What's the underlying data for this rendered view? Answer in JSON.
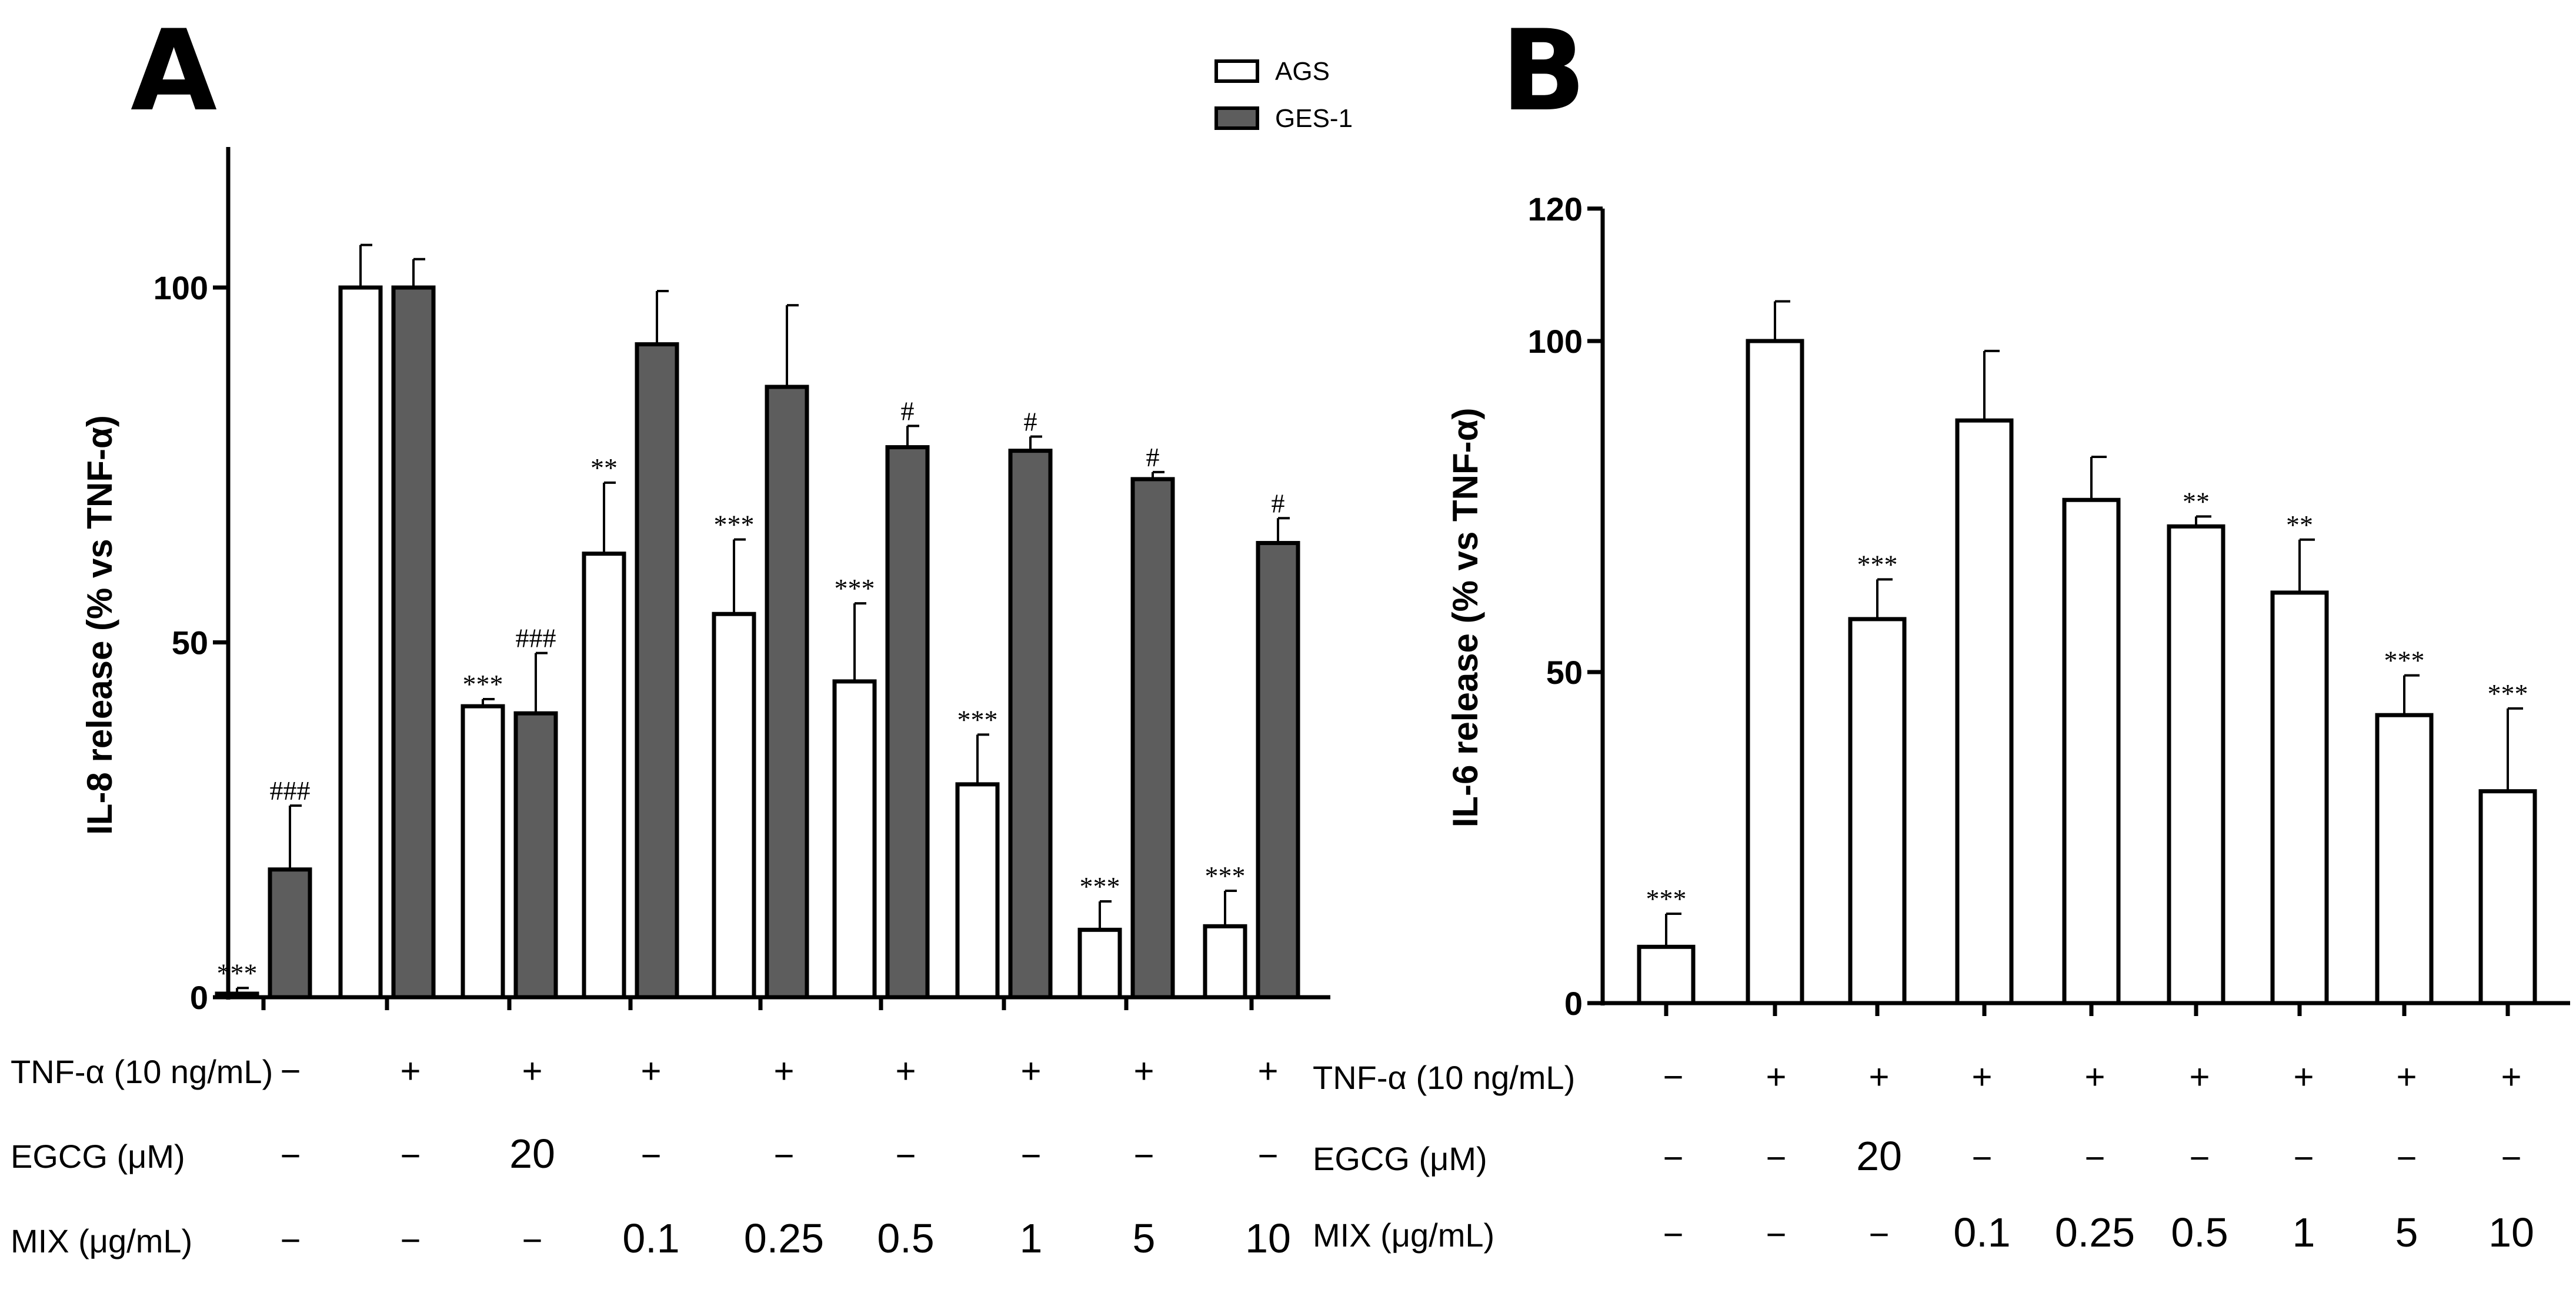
{
  "chart_data": [
    {
      "panel": "A",
      "type": "bar",
      "ylabel": "IL-8 release (% vs TNF-α)",
      "yticks": [
        0,
        50,
        100
      ],
      "ylim": [
        0,
        120
      ],
      "legend": {
        "position": "top-right",
        "entries": [
          "AGS",
          "GES-1"
        ]
      },
      "series": [
        {
          "name": "AGS",
          "color": "#ffffff",
          "values": [
            0.5,
            100,
            41,
            62.5,
            54,
            44.5,
            30,
            9.5,
            10
          ],
          "errors": [
            0.8,
            6,
            1,
            10,
            10.5,
            11,
            7,
            4,
            5
          ],
          "sig": [
            "***",
            "",
            "***",
            "**",
            "***",
            "***",
            "***",
            "***",
            "***"
          ]
        },
        {
          "name": "GES-1",
          "color": "#5d5d5d",
          "values": [
            18,
            100,
            40,
            92,
            86,
            77.5,
            77,
            73,
            64
          ],
          "errors": [
            9,
            4,
            8.5,
            7.5,
            11.5,
            3,
            2,
            1,
            3.5
          ],
          "sig": [
            "###",
            "",
            "###",
            "",
            "",
            "#",
            "#",
            "#",
            "#"
          ]
        }
      ]
    },
    {
      "panel": "B",
      "type": "bar",
      "ylabel": "IL-6 release (% vs TNF-α)",
      "yticks": [
        0,
        50,
        100,
        120
      ],
      "ylim": [
        0,
        120
      ],
      "series": [
        {
          "color": "#ffffff",
          "values": [
            8.5,
            100,
            58,
            88,
            76,
            72,
            62,
            43.5,
            32
          ],
          "errors": [
            5,
            6,
            6,
            10.5,
            6.5,
            1.5,
            8,
            6,
            12.5
          ],
          "sig": [
            "***",
            "",
            "***",
            "",
            "",
            "**",
            "**",
            "***",
            "***"
          ]
        }
      ]
    }
  ],
  "treatments": {
    "tnf": {
      "label": "TNF-α (10 ng/mL)",
      "values": [
        "−",
        "+",
        "+",
        "+",
        "+",
        "+",
        "+",
        "+",
        "+"
      ]
    },
    "egcg": {
      "label": "EGCG (μM)",
      "values": [
        "−",
        "−",
        "20",
        "−",
        "−",
        "−",
        "−",
        "−",
        "−"
      ]
    },
    "mix": {
      "label": "MIX (μg/mL)",
      "values": [
        "−",
        "−",
        "−",
        "0.1",
        "0.25",
        "0.5",
        "1",
        "5",
        "10"
      ]
    }
  }
}
